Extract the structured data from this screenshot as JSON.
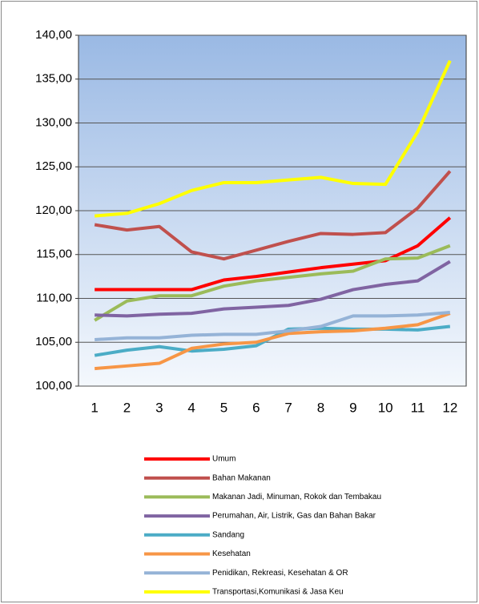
{
  "chart_data": {
    "type": "line",
    "categories": [
      "1",
      "2",
      "3",
      "4",
      "5",
      "6",
      "7",
      "8",
      "9",
      "10",
      "11",
      "12"
    ],
    "series": [
      {
        "name": "Umum",
        "color": "#ff0000",
        "values": [
          111.0,
          111.0,
          111.0,
          111.0,
          112.1,
          112.5,
          113.0,
          113.5,
          113.9,
          114.3,
          116.0,
          119.2
        ]
      },
      {
        "name": "Bahan Makanan",
        "color": "#c0504d",
        "values": [
          118.4,
          117.8,
          118.2,
          115.3,
          114.5,
          115.5,
          116.5,
          117.4,
          117.3,
          117.5,
          120.3,
          124.5
        ]
      },
      {
        "name": "Makanan Jadi, Minuman, Rokok dan Tembakau",
        "color": "#9bbb59",
        "values": [
          107.5,
          109.7,
          110.3,
          110.3,
          111.4,
          112.0,
          112.4,
          112.8,
          113.1,
          114.5,
          114.6,
          116.0
        ]
      },
      {
        "name": "Perumahan, Air, Listrik, Gas dan Bahan Bakar",
        "color": "#8064a2",
        "values": [
          108.1,
          108.0,
          108.2,
          108.3,
          108.8,
          109.0,
          109.2,
          109.9,
          111.0,
          111.6,
          112.0,
          114.2
        ]
      },
      {
        "name": "Sandang",
        "color": "#4bacc6",
        "values": [
          103.5,
          104.1,
          104.5,
          104.0,
          104.2,
          104.6,
          106.5,
          106.6,
          106.5,
          106.5,
          106.4,
          106.8
        ]
      },
      {
        "name": "Kesehatan",
        "color": "#f79646",
        "values": [
          102.0,
          102.3,
          102.6,
          104.3,
          104.8,
          105.0,
          106.0,
          106.2,
          106.3,
          106.6,
          107.0,
          108.3
        ]
      },
      {
        "name": "Penidikan, Rekreasi, Kesehatan & OR",
        "color": "#95b3d7",
        "values": [
          105.3,
          105.5,
          105.5,
          105.8,
          105.9,
          105.9,
          106.3,
          106.8,
          108.0,
          108.0,
          108.1,
          108.4
        ]
      },
      {
        "name": "Transportasi,Komunikasi & Jasa Keu",
        "color": "#ffff00",
        "values": [
          119.4,
          119.7,
          120.8,
          122.3,
          123.2,
          123.2,
          123.5,
          123.8,
          123.1,
          123.0,
          129.0,
          137.1
        ]
      }
    ],
    "ylim": [
      100,
      140
    ],
    "yticks": [
      {
        "value": 100,
        "label": "100,00"
      },
      {
        "value": 105,
        "label": "105,00"
      },
      {
        "value": 110,
        "label": "110,00"
      },
      {
        "value": 115,
        "label": "115,00"
      },
      {
        "value": 120,
        "label": "120,00"
      },
      {
        "value": 125,
        "label": "125,00"
      },
      {
        "value": 130,
        "label": "130,00"
      },
      {
        "value": 135,
        "label": "135,00"
      },
      {
        "value": 140,
        "label": "140,00"
      }
    ],
    "grid": true
  }
}
